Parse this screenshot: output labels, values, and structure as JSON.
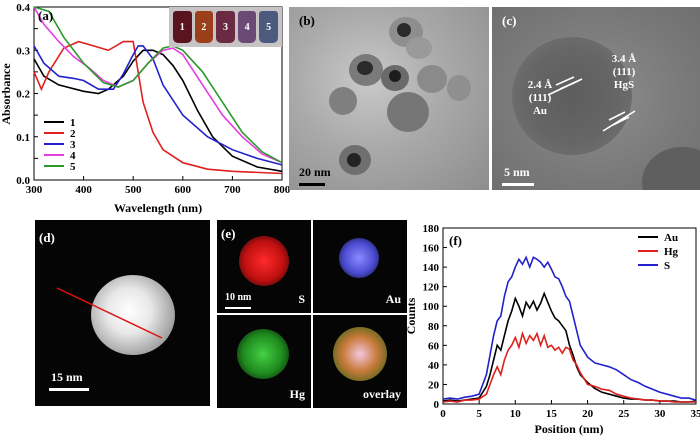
{
  "panels": {
    "a": {
      "label": "(a)"
    },
    "b": {
      "label": "(b)",
      "scalebar": "20 nm"
    },
    "c": {
      "label": "(c)",
      "scalebar": "5 nm",
      "annot_au": [
        "2.4 Å",
        "(111)",
        "Au"
      ],
      "annot_hgs": [
        "3.4 Å",
        "(111)",
        "HgS"
      ]
    },
    "d": {
      "label": "(d)",
      "scalebar": "15 nm"
    },
    "e": {
      "label": "(e)",
      "scalebar": "10 nm",
      "maps": [
        "S",
        "Au",
        "Hg",
        "overlay"
      ]
    },
    "f": {
      "label": "(f)"
    }
  },
  "vials": [
    "1",
    "2",
    "3",
    "4",
    "5"
  ],
  "colors": {
    "s1": "#000000",
    "s2": "#e0211d",
    "s3": "#2222cc",
    "s4": "#e53de0",
    "s5": "#2a9a2a",
    "vials": [
      "#5a1420",
      "#9a3f1a",
      "#6a2a44",
      "#6b4a78",
      "#4b5a7d"
    ]
  },
  "chart_data": [
    {
      "panel": "a",
      "type": "line",
      "xlabel": "Wavelength (nm)",
      "ylabel": "Absorbance",
      "xlim": [
        300,
        800
      ],
      "ylim": [
        0.0,
        0.4
      ],
      "xticks": [
        300,
        400,
        500,
        600,
        700,
        800
      ],
      "yticks": [
        0.0,
        0.05,
        0.1,
        0.15,
        0.2,
        0.25,
        0.3,
        0.35,
        0.4
      ],
      "ytick_labels": [
        "0.0",
        "",
        "0.1",
        "",
        "0.2",
        "",
        "0.3",
        "",
        "0.4"
      ],
      "legend": [
        "1",
        "2",
        "3",
        "4",
        "5"
      ],
      "legend_position": "bottom-left",
      "series": [
        {
          "name": "1",
          "x": [
            300,
            320,
            350,
            400,
            430,
            450,
            480,
            500,
            520,
            540,
            560,
            580,
            600,
            630,
            660,
            700,
            750,
            800
          ],
          "y": [
            0.28,
            0.24,
            0.22,
            0.205,
            0.2,
            0.21,
            0.24,
            0.275,
            0.3,
            0.3,
            0.29,
            0.265,
            0.23,
            0.16,
            0.1,
            0.055,
            0.03,
            0.02
          ]
        },
        {
          "name": "2",
          "x": [
            300,
            315,
            330,
            360,
            390,
            420,
            450,
            480,
            500,
            520,
            540,
            560,
            600,
            650,
            700,
            800
          ],
          "y": [
            0.25,
            0.21,
            0.25,
            0.305,
            0.32,
            0.31,
            0.3,
            0.32,
            0.32,
            0.18,
            0.11,
            0.07,
            0.04,
            0.025,
            0.02,
            0.015
          ]
        },
        {
          "name": "3",
          "x": [
            300,
            320,
            350,
            380,
            400,
            430,
            460,
            480,
            500,
            510,
            520,
            540,
            560,
            600,
            650,
            700,
            750,
            800
          ],
          "y": [
            0.31,
            0.27,
            0.24,
            0.235,
            0.23,
            0.21,
            0.21,
            0.245,
            0.29,
            0.31,
            0.31,
            0.28,
            0.22,
            0.15,
            0.1,
            0.07,
            0.05,
            0.035
          ]
        },
        {
          "name": "4",
          "x": [
            300,
            320,
            350,
            380,
            410,
            440,
            470,
            500,
            530,
            560,
            580,
            600,
            640,
            680,
            720,
            760,
            800
          ],
          "y": [
            0.4,
            0.36,
            0.32,
            0.285,
            0.26,
            0.23,
            0.215,
            0.23,
            0.27,
            0.3,
            0.305,
            0.29,
            0.22,
            0.15,
            0.1,
            0.06,
            0.04
          ]
        },
        {
          "name": "5",
          "x": [
            300,
            330,
            360,
            400,
            440,
            470,
            500,
            530,
            560,
            580,
            600,
            640,
            680,
            720,
            760,
            800
          ],
          "y": [
            0.42,
            0.39,
            0.33,
            0.27,
            0.225,
            0.215,
            0.23,
            0.27,
            0.305,
            0.31,
            0.3,
            0.25,
            0.18,
            0.11,
            0.065,
            0.04
          ]
        }
      ]
    },
    {
      "panel": "f",
      "type": "line",
      "xlabel": "Position (nm)",
      "ylabel": "Counts",
      "xlim": [
        0,
        35
      ],
      "ylim": [
        0,
        180
      ],
      "xticks": [
        0,
        5,
        10,
        15,
        20,
        25,
        30,
        35
      ],
      "yticks": [
        0,
        20,
        40,
        60,
        80,
        100,
        120,
        140,
        160,
        180
      ],
      "legend": [
        "Au",
        "Hg",
        "S"
      ],
      "legend_position": "top-right",
      "series": [
        {
          "name": "Au",
          "x": [
            0,
            1,
            2,
            3,
            4,
            5,
            6,
            6.5,
            7,
            7.5,
            8,
            8.5,
            9,
            9.5,
            10,
            10.5,
            11,
            11.5,
            12,
            12.5,
            13,
            13.5,
            14,
            14.5,
            15,
            15.5,
            16,
            16.5,
            17,
            17.5,
            18,
            18.5,
            19,
            20,
            21,
            22,
            23,
            24,
            25,
            26,
            27,
            28,
            29,
            30,
            31,
            32,
            33,
            34,
            35
          ],
          "y": [
            3,
            4,
            3,
            4,
            5,
            6,
            18,
            30,
            45,
            60,
            55,
            70,
            85,
            95,
            108,
            100,
            90,
            104,
            98,
            105,
            96,
            103,
            113,
            104,
            95,
            88,
            85,
            80,
            75,
            60,
            50,
            38,
            30,
            22,
            16,
            12,
            10,
            8,
            6,
            5,
            5,
            4,
            4,
            3,
            3,
            3,
            2,
            2,
            3
          ]
        },
        {
          "name": "Hg",
          "x": [
            0,
            1,
            2,
            3,
            4,
            5,
            6,
            6.5,
            7,
            7.5,
            8,
            8.5,
            9,
            9.5,
            10,
            10.5,
            11,
            11.5,
            12,
            12.5,
            13,
            13.5,
            14,
            14.5,
            15,
            15.5,
            16,
            16.5,
            17,
            17.5,
            18,
            18.5,
            19,
            20,
            21,
            22,
            23,
            24,
            25,
            26,
            27,
            28,
            29,
            30,
            31,
            32,
            33,
            34,
            35
          ],
          "y": [
            2,
            3,
            2,
            4,
            4,
            5,
            10,
            20,
            30,
            38,
            30,
            45,
            55,
            60,
            68,
            58,
            72,
            62,
            70,
            65,
            72,
            60,
            70,
            58,
            60,
            55,
            58,
            52,
            58,
            56,
            45,
            40,
            32,
            20,
            18,
            15,
            14,
            10,
            8,
            6,
            5,
            4,
            4,
            3,
            3,
            2,
            2,
            2,
            2
          ]
        },
        {
          "name": "S",
          "x": [
            0,
            1,
            2,
            3,
            4,
            5,
            6,
            6.5,
            7,
            7.5,
            8,
            8.5,
            9,
            9.5,
            10,
            10.5,
            11,
            11.5,
            12,
            12.5,
            13,
            13.5,
            14,
            14.5,
            15,
            15.5,
            16,
            16.5,
            17,
            17.5,
            18,
            18.5,
            19,
            20,
            21,
            22,
            23,
            24,
            25,
            26,
            27,
            28,
            29,
            30,
            31,
            32,
            33,
            34,
            35
          ],
          "y": [
            5,
            6,
            5,
            7,
            8,
            10,
            30,
            50,
            70,
            85,
            90,
            110,
            125,
            130,
            140,
            148,
            143,
            150,
            140,
            150,
            148,
            145,
            140,
            145,
            138,
            130,
            128,
            120,
            110,
            105,
            90,
            75,
            60,
            48,
            42,
            40,
            38,
            35,
            30,
            25,
            22,
            18,
            15,
            12,
            10,
            8,
            6,
            6,
            4
          ]
        }
      ]
    }
  ]
}
